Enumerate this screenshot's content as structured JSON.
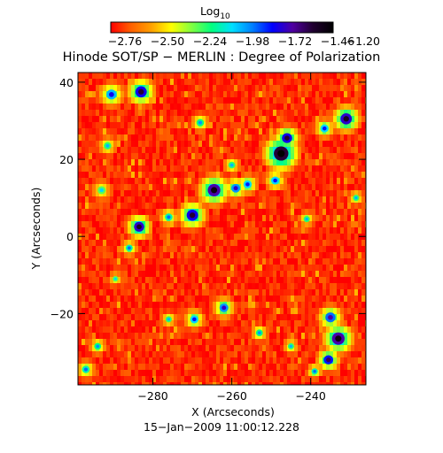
{
  "chart_data": {
    "type": "heatmap",
    "title": "Hinode SOT/SP − MERLIN : Degree of Polarization",
    "xlabel": "X (Arcseconds)",
    "ylabel": "Y (Arcseconds)",
    "date_label": "15−Jan−2009 11:00:12.228",
    "colorbar": {
      "label_base": "Log",
      "label_sub": "10",
      "range": [
        -2.76,
        -1.2
      ],
      "ticks": [
        "−2.76",
        "−2.50",
        "−2.24",
        "−1.98",
        "−1.72",
        "−1.46",
        "−1.20"
      ],
      "colormap": [
        "#ff0000",
        "#ff6000",
        "#ffa000",
        "#ffff00",
        "#80ff40",
        "#00ff80",
        "#00e0ff",
        "#0080ff",
        "#0000ff",
        "#5000a0",
        "#200030",
        "#000000"
      ]
    },
    "xlim": [
      -299,
      -226
    ],
    "ylim": [
      -38.5,
      42.5
    ],
    "xticks": [
      {
        "value": -280,
        "label": "−280"
      },
      {
        "value": -260,
        "label": "−260"
      },
      {
        "value": -240,
        "label": "−240"
      }
    ],
    "yticks": [
      {
        "value": 40,
        "label": "40"
      },
      {
        "value": 20,
        "label": "20"
      },
      {
        "value": 0,
        "label": "0"
      },
      {
        "value": -20,
        "label": "−20"
      }
    ],
    "background_level_log10": -2.7,
    "polarization_patches": [
      {
        "x": -290.5,
        "y": 36.8,
        "r": 1.6,
        "v": -1.85
      },
      {
        "x": -283.0,
        "y": 37.5,
        "r": 1.8,
        "v": -1.6
      },
      {
        "x": -291.5,
        "y": 23.5,
        "r": 1.2,
        "v": -2.1
      },
      {
        "x": -293.0,
        "y": 12.0,
        "r": 1.3,
        "v": -2.15
      },
      {
        "x": -283.5,
        "y": 2.5,
        "r": 1.6,
        "v": -1.55
      },
      {
        "x": -286.0,
        "y": -3.0,
        "r": 1.1,
        "v": -2.0
      },
      {
        "x": -270.0,
        "y": 5.5,
        "r": 1.8,
        "v": -1.6
      },
      {
        "x": -276.0,
        "y": 5.0,
        "r": 1.2,
        "v": -2.0
      },
      {
        "x": -264.5,
        "y": 12.0,
        "r": 2.0,
        "v": -1.5
      },
      {
        "x": -259.0,
        "y": 12.5,
        "r": 1.4,
        "v": -1.8
      },
      {
        "x": -256.0,
        "y": 13.5,
        "r": 1.3,
        "v": -1.9
      },
      {
        "x": -247.5,
        "y": 21.5,
        "r": 2.3,
        "v": -1.35
      },
      {
        "x": -246.0,
        "y": 25.5,
        "r": 1.6,
        "v": -1.6
      },
      {
        "x": -249.0,
        "y": 14.5,
        "r": 1.3,
        "v": -1.9
      },
      {
        "x": -231.0,
        "y": 30.5,
        "r": 1.8,
        "v": -1.55
      },
      {
        "x": -236.5,
        "y": 28.0,
        "r": 1.3,
        "v": -1.9
      },
      {
        "x": -268.0,
        "y": 29.5,
        "r": 1.2,
        "v": -2.05
      },
      {
        "x": -260.0,
        "y": 18.5,
        "r": 1.1,
        "v": -2.1
      },
      {
        "x": -262.0,
        "y": -18.5,
        "r": 1.4,
        "v": -1.8
      },
      {
        "x": -269.5,
        "y": -21.5,
        "r": 1.3,
        "v": -1.9
      },
      {
        "x": -276.0,
        "y": -21.5,
        "r": 1.0,
        "v": -2.1
      },
      {
        "x": -245.0,
        "y": -28.5,
        "r": 1.0,
        "v": -2.1
      },
      {
        "x": -253.0,
        "y": -25.0,
        "r": 1.1,
        "v": -2.05
      },
      {
        "x": -235.0,
        "y": -21.0,
        "r": 1.6,
        "v": -1.75
      },
      {
        "x": -233.0,
        "y": -26.5,
        "r": 2.0,
        "v": -1.5
      },
      {
        "x": -235.5,
        "y": -32.0,
        "r": 1.5,
        "v": -1.65
      },
      {
        "x": -239.0,
        "y": -35.0,
        "r": 1.0,
        "v": -2.0
      },
      {
        "x": -294.0,
        "y": -28.5,
        "r": 1.1,
        "v": -2.05
      },
      {
        "x": -297.0,
        "y": -34.5,
        "r": 1.2,
        "v": -2.0
      },
      {
        "x": -289.5,
        "y": -11.0,
        "r": 0.9,
        "v": -2.15
      },
      {
        "x": -241.0,
        "y": 4.5,
        "r": 1.0,
        "v": -2.1
      },
      {
        "x": -228.5,
        "y": 10.0,
        "r": 1.0,
        "v": -2.1
      }
    ]
  }
}
